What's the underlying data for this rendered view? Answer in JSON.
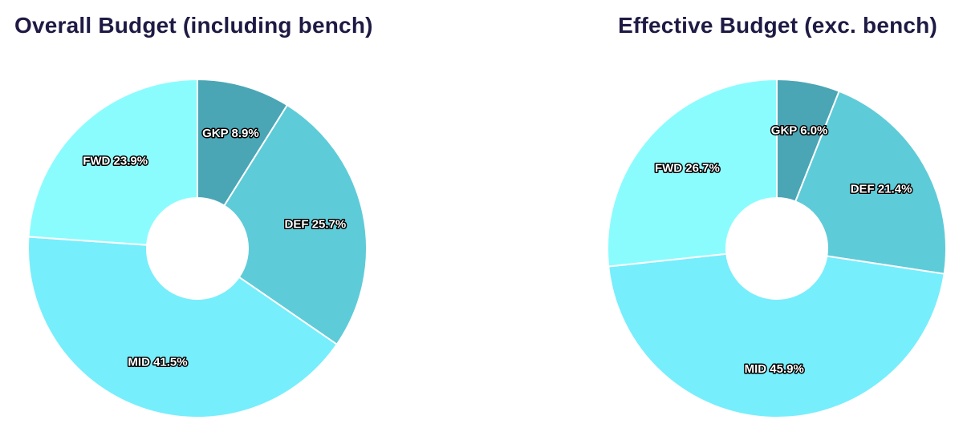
{
  "chart_data": [
    {
      "type": "pie",
      "donut": true,
      "title": "Overall Budget (including bench)",
      "categories": [
        "GKP",
        "DEF",
        "MID",
        "FWD"
      ],
      "values": [
        8.9,
        25.7,
        41.5,
        23.9
      ],
      "labels": [
        "GKP 8.9%",
        "DEF 25.7%",
        "MID 41.5%",
        "FWD 23.9%"
      ],
      "colors": [
        "#4aa6b5",
        "#5ecbd8",
        "#77eefc",
        "#8bfcfe"
      ],
      "unit": "%"
    },
    {
      "type": "pie",
      "donut": true,
      "title": "Effective Budget (exc. bench)",
      "categories": [
        "GKP",
        "DEF",
        "MID",
        "FWD"
      ],
      "values": [
        6.0,
        21.4,
        45.9,
        26.7
      ],
      "labels": [
        "GKP 6.0%",
        "DEF 21.4%",
        "MID 45.9%",
        "FWD 26.7%"
      ],
      "colors": [
        "#4aa6b5",
        "#5ecbd8",
        "#77eefc",
        "#8bfcfe"
      ],
      "unit": "%"
    }
  ]
}
